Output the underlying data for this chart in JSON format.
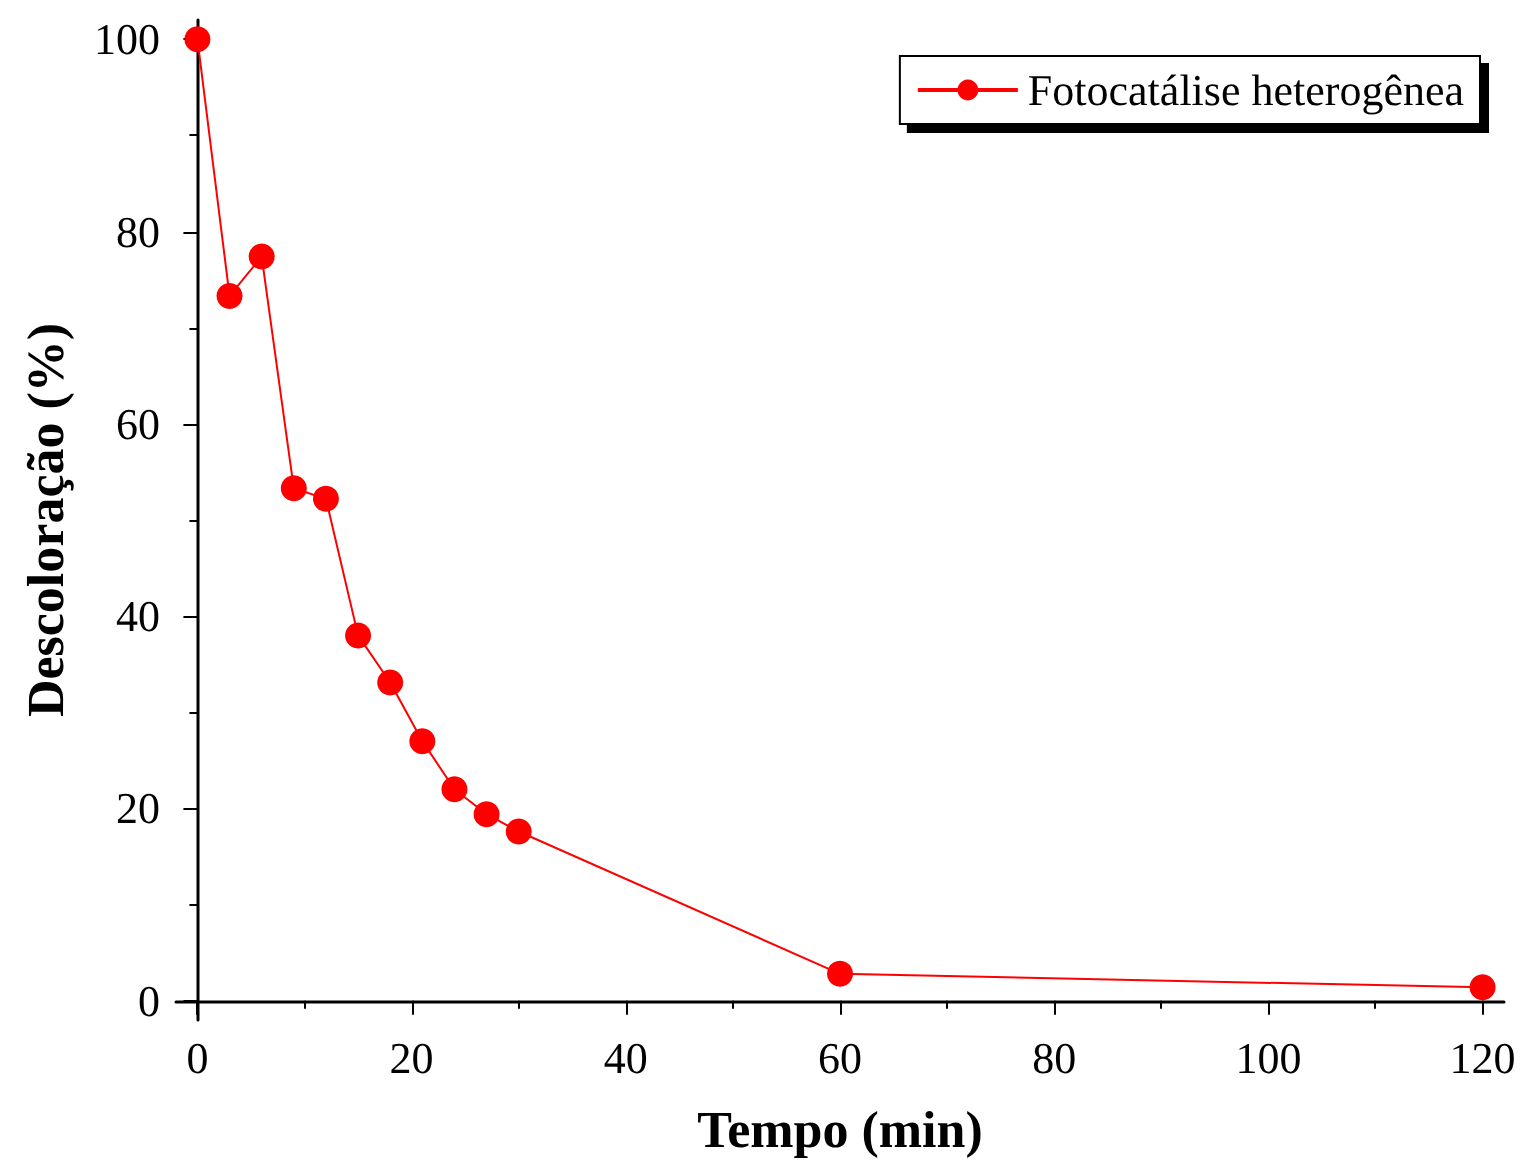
{
  "chart_data": {
    "type": "line",
    "xlabel": "Tempo (min)",
    "ylabel": "Descoloração (%)",
    "x": [
      0,
      3,
      6,
      9,
      12,
      15,
      18,
      21,
      24,
      27,
      30,
      60,
      120
    ],
    "series": [
      {
        "name": "Fotocatálise heterogênea",
        "color": "#ff0000",
        "values": [
          100,
          73.3,
          77.4,
          53.3,
          52.2,
          38,
          33.1,
          27,
          22,
          19.4,
          17.6,
          2.8,
          1.4
        ]
      }
    ],
    "xlim": [
      -2,
      122
    ],
    "xticks": [
      0,
      20,
      40,
      60,
      80,
      100,
      120
    ],
    "ylim": [
      -2,
      102
    ],
    "yticks": [
      0,
      20,
      40,
      60,
      80,
      100
    ],
    "grid": false,
    "legend": "top right",
    "marker": "circle",
    "line_style": "solid"
  }
}
